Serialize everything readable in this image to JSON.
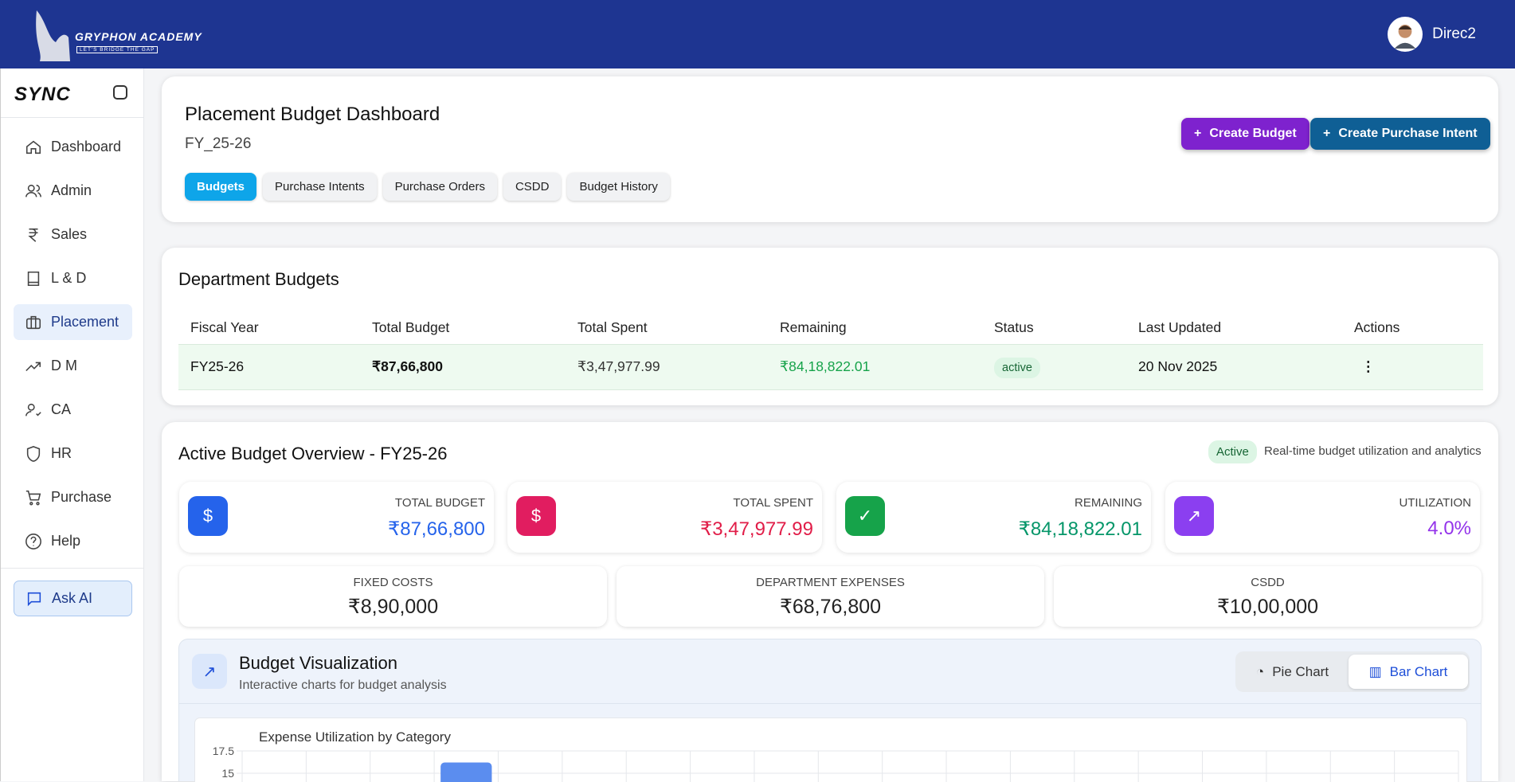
{
  "header": {
    "brand": "GRYPHON ACADEMY",
    "tagline": "LET'S BRIDGE THE GAP",
    "username": "Direc2"
  },
  "sidebar": {
    "logo": "SYNC",
    "items": [
      {
        "label": "Dashboard",
        "icon": "home-icon"
      },
      {
        "label": "Admin",
        "icon": "users-icon"
      },
      {
        "label": "Sales",
        "icon": "rupee-icon"
      },
      {
        "label": "L & D",
        "icon": "book-icon"
      },
      {
        "label": "Placement",
        "icon": "briefcase-icon",
        "active": true
      },
      {
        "label": "D M",
        "icon": "trending-up-icon"
      },
      {
        "label": "CA",
        "icon": "user-check-icon"
      },
      {
        "label": "HR",
        "icon": "shield-icon"
      },
      {
        "label": "Purchase",
        "icon": "cart-icon"
      },
      {
        "label": "Help",
        "icon": "help-icon"
      }
    ],
    "ask_ai": "Ask AI"
  },
  "page": {
    "title": "Placement Budget Dashboard",
    "fy": "FY_25-26",
    "tabs": [
      "Budgets",
      "Purchase Intents",
      "Purchase Orders",
      "CSDD",
      "Budget History"
    ],
    "create_budget": "Create Budget",
    "create_pi": "Create Purchase Intent"
  },
  "dept": {
    "title": "Department Budgets",
    "columns": [
      "Fiscal Year",
      "Total Budget",
      "Total Spent",
      "Remaining",
      "Status",
      "Last Updated",
      "Actions"
    ],
    "rows": [
      {
        "fy": "FY25-26",
        "total": "₹87,66,800",
        "spent": "₹3,47,977.99",
        "remaining": "₹84,18,822.01",
        "status": "active",
        "updated": "20 Nov 2025"
      }
    ]
  },
  "overview": {
    "title": "Active Budget Overview - FY25-26",
    "badge": "Active",
    "subtitle": "Real-time budget utilization and analytics",
    "stats": [
      {
        "label": "TOTAL BUDGET",
        "value": "₹87,66,800",
        "color": "#2563eb"
      },
      {
        "label": "TOTAL SPENT",
        "value": "₹3,47,977.99",
        "color": "#e11d48"
      },
      {
        "label": "REMAINING",
        "value": "₹84,18,822.01",
        "color": "#059669"
      },
      {
        "label": "UTILIZATION",
        "value": "4.0%",
        "color": "#9333ea"
      }
    ],
    "breakdown": [
      {
        "label": "FIXED COSTS",
        "value": "₹8,90,000"
      },
      {
        "label": "DEPARTMENT EXPENSES",
        "value": "₹68,76,800"
      },
      {
        "label": "CSDD",
        "value": "₹10,00,000"
      }
    ]
  },
  "viz": {
    "title": "Budget Visualization",
    "subtitle": "Interactive charts for budget analysis",
    "pie": "Pie Chart",
    "bar": "Bar Chart",
    "selected": "Bar Chart"
  },
  "chart_data": {
    "type": "bar",
    "title": "Expense Utilization by Category",
    "yticks": [
      "17.5",
      "15"
    ],
    "ylim": [
      0,
      17.5
    ],
    "grid": true,
    "values": [
      null,
      null,
      null,
      16.2,
      null,
      null,
      null,
      null,
      null,
      null,
      null,
      null,
      null,
      null,
      null,
      null,
      null,
      null,
      null
    ],
    "color": "#5b8def"
  }
}
